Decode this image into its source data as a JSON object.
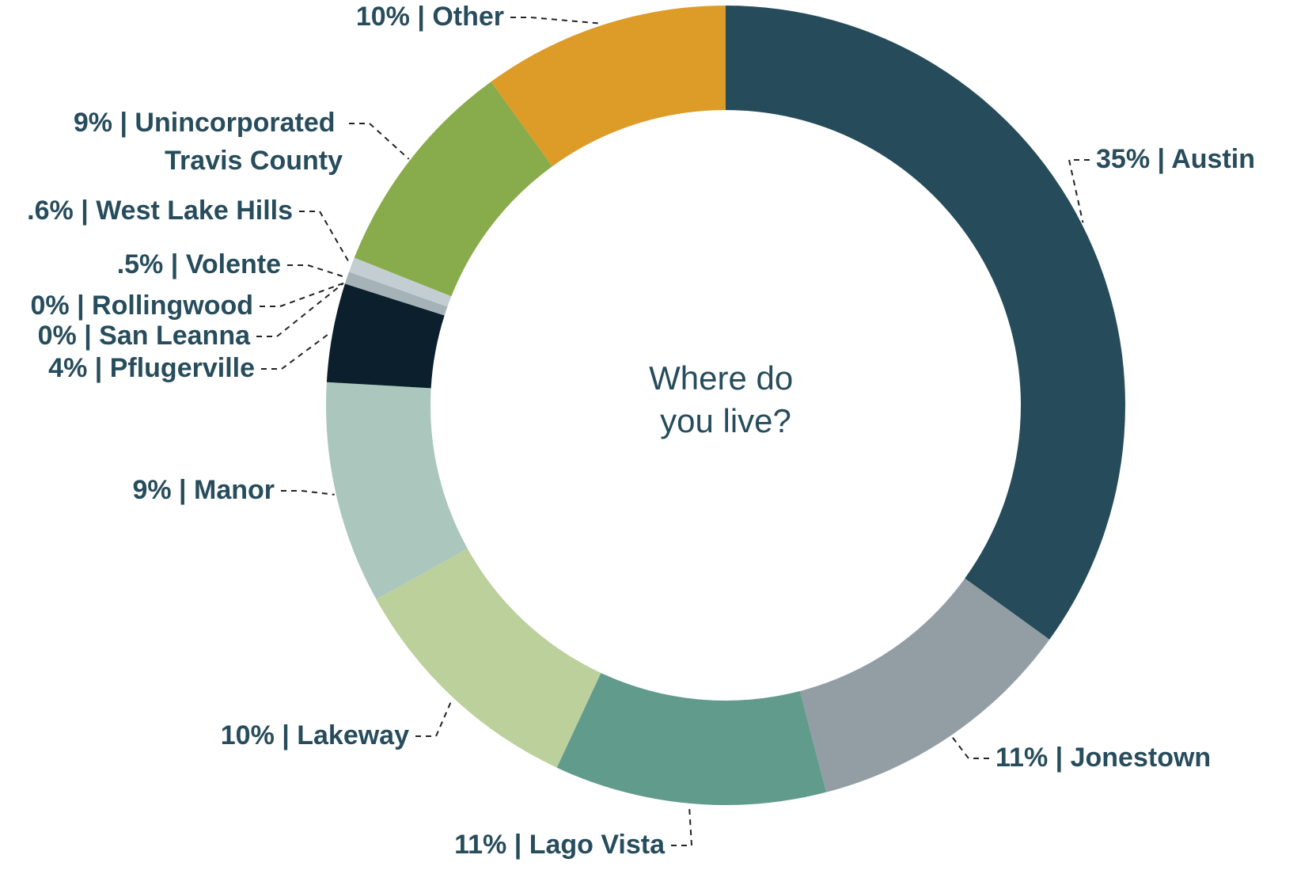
{
  "chart_data": {
    "type": "donut",
    "title": "Where do you live?",
    "label_separator": "|",
    "categories": [
      "Austin",
      "Jonestown",
      "Lago Vista",
      "Lakeway",
      "Manor",
      "Pflugerville",
      "San Leanna",
      "Rollingwood",
      "Volente",
      "West Lake Hills",
      "Unincorporated Travis County",
      "Other"
    ],
    "values": [
      35,
      11,
      11,
      10,
      9,
      4,
      0,
      0,
      0.5,
      0.6,
      9,
      10
    ],
    "value_labels": [
      "35%",
      "11%",
      "11%",
      "10%",
      "9%",
      "4%",
      "0%",
      "0%",
      ".5%",
      ".6%",
      "9%",
      "10%"
    ],
    "colors": [
      "#264c5b",
      "#939ea4",
      "#619b8b",
      "#bcd09c",
      "#abc7bd",
      "#0b1f2c",
      "#4f6a78",
      "#7d959c",
      "#a5b3b9",
      "#c3ced3",
      "#88ab4b",
      "#dd9b27"
    ]
  }
}
